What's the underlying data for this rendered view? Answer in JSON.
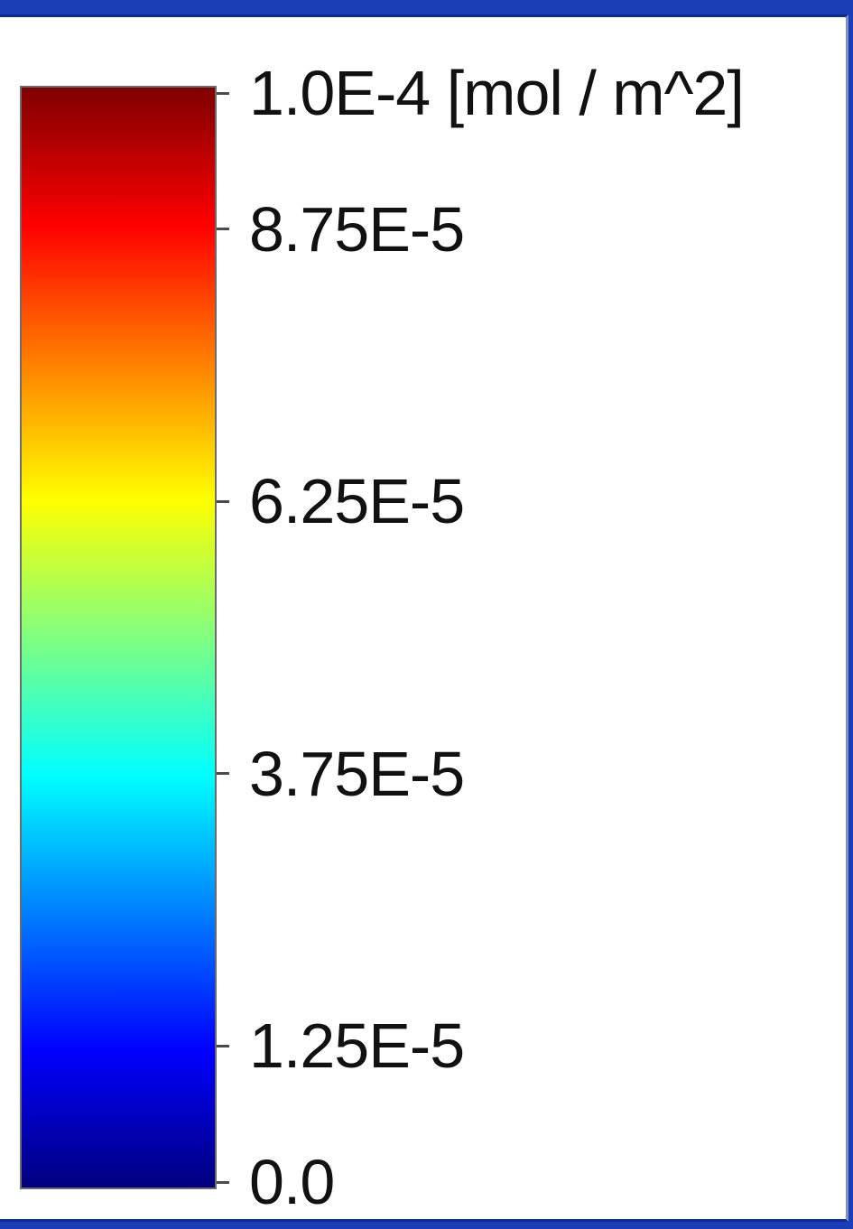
{
  "legend": {
    "unit": "[mol / m^2]",
    "ticks": [
      {
        "value": 0.0001,
        "label": "1.0E-4 [mol / m^2]"
      },
      {
        "value": 8.75e-05,
        "label": "8.75E-5"
      },
      {
        "value": 6.25e-05,
        "label": "6.25E-5"
      },
      {
        "value": 3.75e-05,
        "label": "3.75E-5"
      },
      {
        "value": 1.25e-05,
        "label": "1.25E-5"
      },
      {
        "value": 0.0,
        "label": "0.0"
      }
    ],
    "range": [
      0.0,
      0.0001
    ],
    "colormap": "jet",
    "gradient_stops": [
      {
        "value": 0.0001,
        "color": "#7f0000"
      },
      {
        "value": 8.75e-05,
        "color": "#ff0000"
      },
      {
        "value": 6.25e-05,
        "color": "#ffff00"
      },
      {
        "value": 5e-05,
        "color": "#80ff80"
      },
      {
        "value": 3.75e-05,
        "color": "#00ffff"
      },
      {
        "value": 1.25e-05,
        "color": "#0000ff"
      },
      {
        "value": 0.0,
        "color": "#00007f"
      }
    ]
  }
}
